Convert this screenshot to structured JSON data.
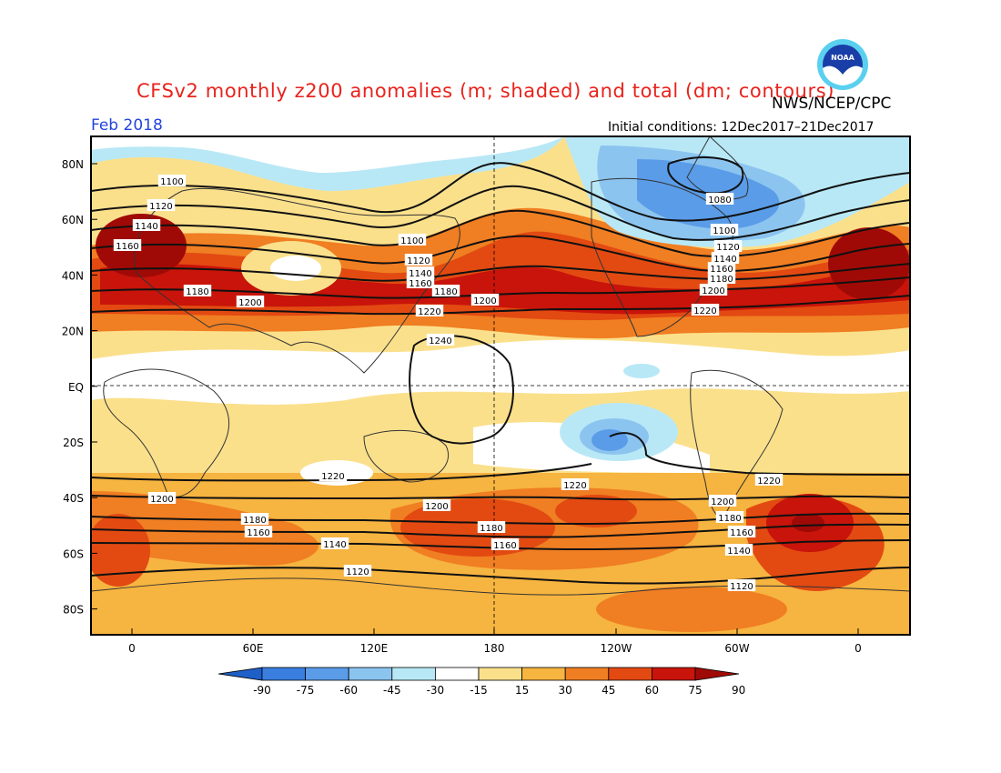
{
  "title": "CFSv2 monthly z200 anomalies (m; shaded) and total (dm; contours)",
  "agency": "NWS/NCEP/CPC",
  "logo_text": "NOAA",
  "valid_month": "Feb 2018",
  "initial_conditions": "Initial conditions: 12Dec2017–21Dec2017",
  "lat_labels": [
    "80N",
    "60N",
    "40N",
    "20N",
    "EQ",
    "20S",
    "40S",
    "60S",
    "80S"
  ],
  "lon_labels": [
    "0",
    "60E",
    "120E",
    "180",
    "120W",
    "60W",
    "0"
  ],
  "colorbar": {
    "ticks": [
      "-90",
      "-75",
      "-60",
      "-45",
      "-30",
      "-15",
      "15",
      "30",
      "45",
      "60",
      "75",
      "90"
    ],
    "colors": [
      "#1f5fc8",
      "#3a7fe0",
      "#5a9ce8",
      "#8cc4f0",
      "#b8e8f6",
      "#ffffff",
      "#fbe08c",
      "#f6b440",
      "#f07e22",
      "#e24a12",
      "#c8140a",
      "#a00a06"
    ]
  },
  "contour_labels": {
    "nh_west": [
      "1100",
      "1120",
      "1140",
      "1160"
    ],
    "nh_europe": [
      "1180",
      "1200"
    ],
    "nh_pacific": [
      "1100",
      "1120",
      "1140",
      "1160",
      "1180",
      "1200",
      "1220"
    ],
    "nh_america": [
      "1080",
      "1100",
      "1120",
      "1140",
      "1160",
      "1180",
      "1200",
      "1220"
    ],
    "tropics": [
      "1240"
    ],
    "sh": [
      "1220",
      "1200",
      "1180",
      "1160",
      "1140",
      "1120",
      "1220",
      "1200",
      "1180",
      "1160",
      "1220",
      "1200",
      "1180",
      "1160",
      "1140",
      "1120"
    ]
  }
}
